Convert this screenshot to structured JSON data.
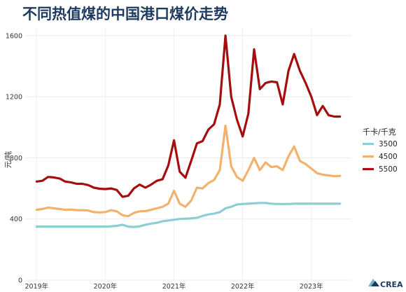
{
  "chart_data": {
    "type": "line",
    "title": "不同热值煤的中国港口煤价走势",
    "ylabel": "元/吨",
    "xlabel": "",
    "ylim": [
      0,
      1650
    ],
    "yticks": [
      0,
      400,
      800,
      1200,
      1600
    ],
    "x_tick_labels": [
      "2019年",
      "2020年",
      "2021年",
      "2022年",
      "2023年"
    ],
    "x_tick_values": [
      0,
      12,
      24,
      36,
      48
    ],
    "x_range": [
      -2,
      55
    ],
    "grid": true,
    "legend_title": "千卡/千克",
    "legend_position": "right",
    "x": [
      0,
      1,
      2,
      3,
      4,
      5,
      6,
      7,
      8,
      9,
      10,
      11,
      12,
      13,
      14,
      15,
      16,
      17,
      18,
      19,
      20,
      21,
      22,
      23,
      24,
      25,
      26,
      27,
      28,
      29,
      30,
      31,
      32,
      33,
      34,
      35,
      36,
      37,
      38,
      39,
      40,
      41,
      42,
      43,
      44,
      45,
      46,
      47,
      48,
      49,
      50,
      51,
      52,
      53
    ],
    "series": [
      {
        "name": "3500",
        "color": "#8ecdd3",
        "values": [
          350,
          350,
          350,
          350,
          350,
          350,
          350,
          350,
          350,
          350,
          350,
          350,
          350,
          352,
          355,
          362,
          350,
          348,
          352,
          362,
          370,
          375,
          385,
          390,
          395,
          400,
          402,
          404,
          408,
          420,
          430,
          435,
          445,
          470,
          480,
          495,
          498,
          500,
          503,
          505,
          505,
          500,
          498,
          498,
          498,
          500,
          500,
          500,
          500,
          500,
          500,
          500,
          500,
          500
        ]
      },
      {
        "name": "4500",
        "color": "#f2b26d",
        "values": [
          460,
          465,
          475,
          470,
          465,
          460,
          462,
          458,
          458,
          455,
          445,
          443,
          445,
          458,
          450,
          425,
          418,
          440,
          450,
          452,
          460,
          470,
          480,
          500,
          585,
          500,
          480,
          520,
          605,
          600,
          635,
          655,
          720,
          1010,
          745,
          675,
          650,
          720,
          800,
          720,
          770,
          740,
          745,
          720,
          810,
          875,
          780,
          760,
          730,
          700,
          690,
          685,
          680,
          682
        ]
      },
      {
        "name": "5500",
        "color": "#a40e0e",
        "values": [
          645,
          650,
          675,
          672,
          665,
          645,
          640,
          630,
          630,
          622,
          605,
          598,
          596,
          600,
          590,
          545,
          552,
          600,
          625,
          605,
          625,
          650,
          660,
          750,
          915,
          710,
          670,
          780,
          895,
          910,
          985,
          1020,
          1150,
          1600,
          1200,
          1050,
          940,
          1090,
          1510,
          1250,
          1290,
          1300,
          1295,
          1150,
          1370,
          1480,
          1370,
          1290,
          1200,
          1080,
          1140,
          1080,
          1070,
          1070
        ]
      }
    ]
  },
  "logo": {
    "text": "CREA"
  }
}
